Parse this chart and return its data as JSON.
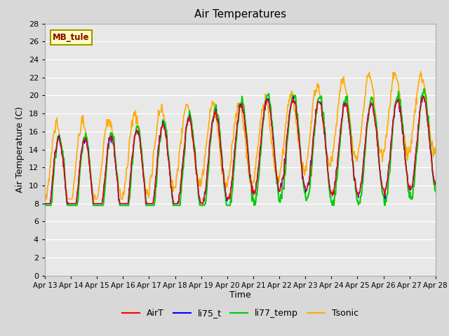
{
  "title": "Air Temperatures",
  "xlabel": "Time",
  "ylabel": "Air Temperature (C)",
  "annotation": "MB_tule",
  "ylim": [
    0,
    28
  ],
  "yticks": [
    0,
    2,
    4,
    6,
    8,
    10,
    12,
    14,
    16,
    18,
    20,
    22,
    24,
    26,
    28
  ],
  "xtick_labels": [
    "Apr 13",
    "Apr 14",
    "Apr 15",
    "Apr 16",
    "Apr 17",
    "Apr 18",
    "Apr 19",
    "Apr 20",
    "Apr 21",
    "Apr 22",
    "Apr 23",
    "Apr 24",
    "Apr 25",
    "Apr 26",
    "Apr 27",
    "Apr 28"
  ],
  "legend_entries": [
    "AirT",
    "li75_t",
    "li77_temp",
    "Tsonic"
  ],
  "legend_colors": [
    "#ff0000",
    "#0000ff",
    "#00cc00",
    "#ffaa00"
  ],
  "fig_bg_color": "#d8d8d8",
  "plot_bg_color": "#e8e8e8",
  "grid_color": "#ffffff",
  "n_days": 15,
  "n_pts_per_day": 48
}
